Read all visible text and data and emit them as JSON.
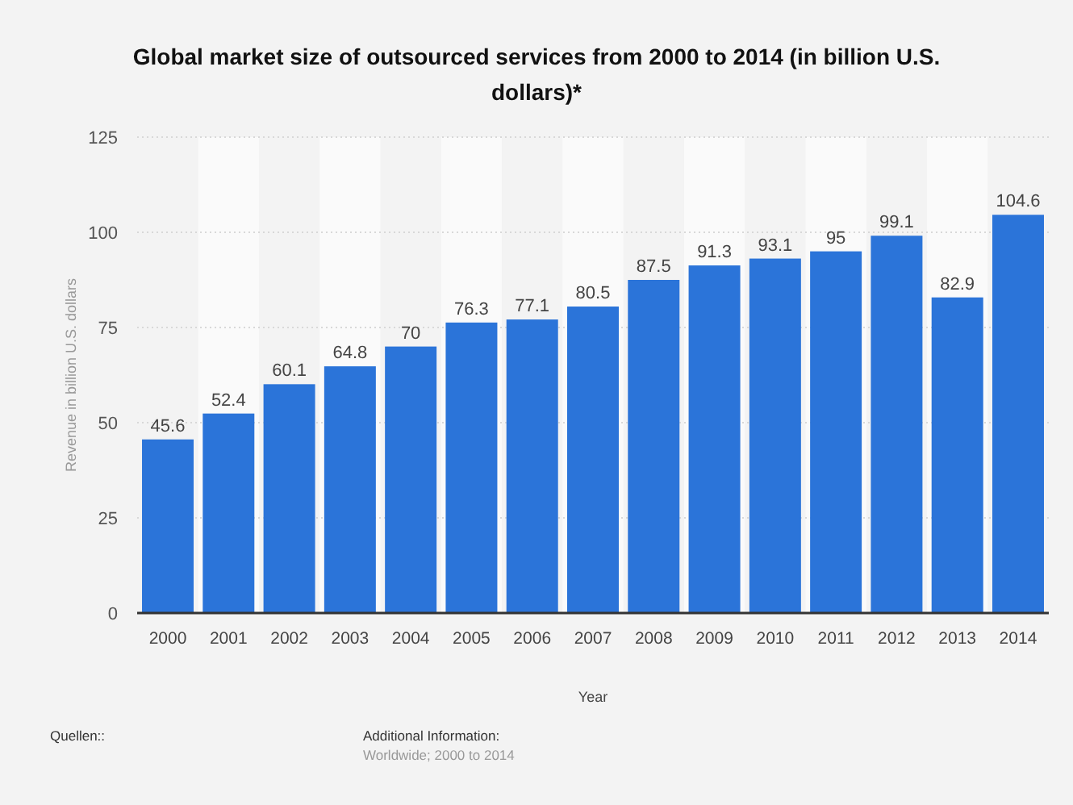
{
  "chart_data": {
    "type": "bar",
    "title": "Global market size of outsourced services from 2000 to 2014 (in billion U.S. dollars)*",
    "xlabel": "Year",
    "ylabel": "Revenue in billion U.S. dollars",
    "categories": [
      "2000",
      "2001",
      "2002",
      "2003",
      "2004",
      "2005",
      "2006",
      "2007",
      "2008",
      "2009",
      "2010",
      "2011",
      "2012",
      "2013",
      "2014"
    ],
    "values": [
      45.6,
      52.4,
      60.1,
      64.8,
      70,
      76.3,
      77.1,
      80.5,
      87.5,
      91.3,
      93.1,
      95,
      99.1,
      82.9,
      104.6
    ],
    "color": "#2b74d9",
    "ylim": [
      0,
      125
    ],
    "yticks": [
      0,
      25,
      50,
      75,
      100,
      125
    ],
    "grid": "y",
    "data_labels": true,
    "annotations": [
      "Quellen::",
      "Additional Information:",
      "Worldwide; 2000 to 2014"
    ]
  }
}
